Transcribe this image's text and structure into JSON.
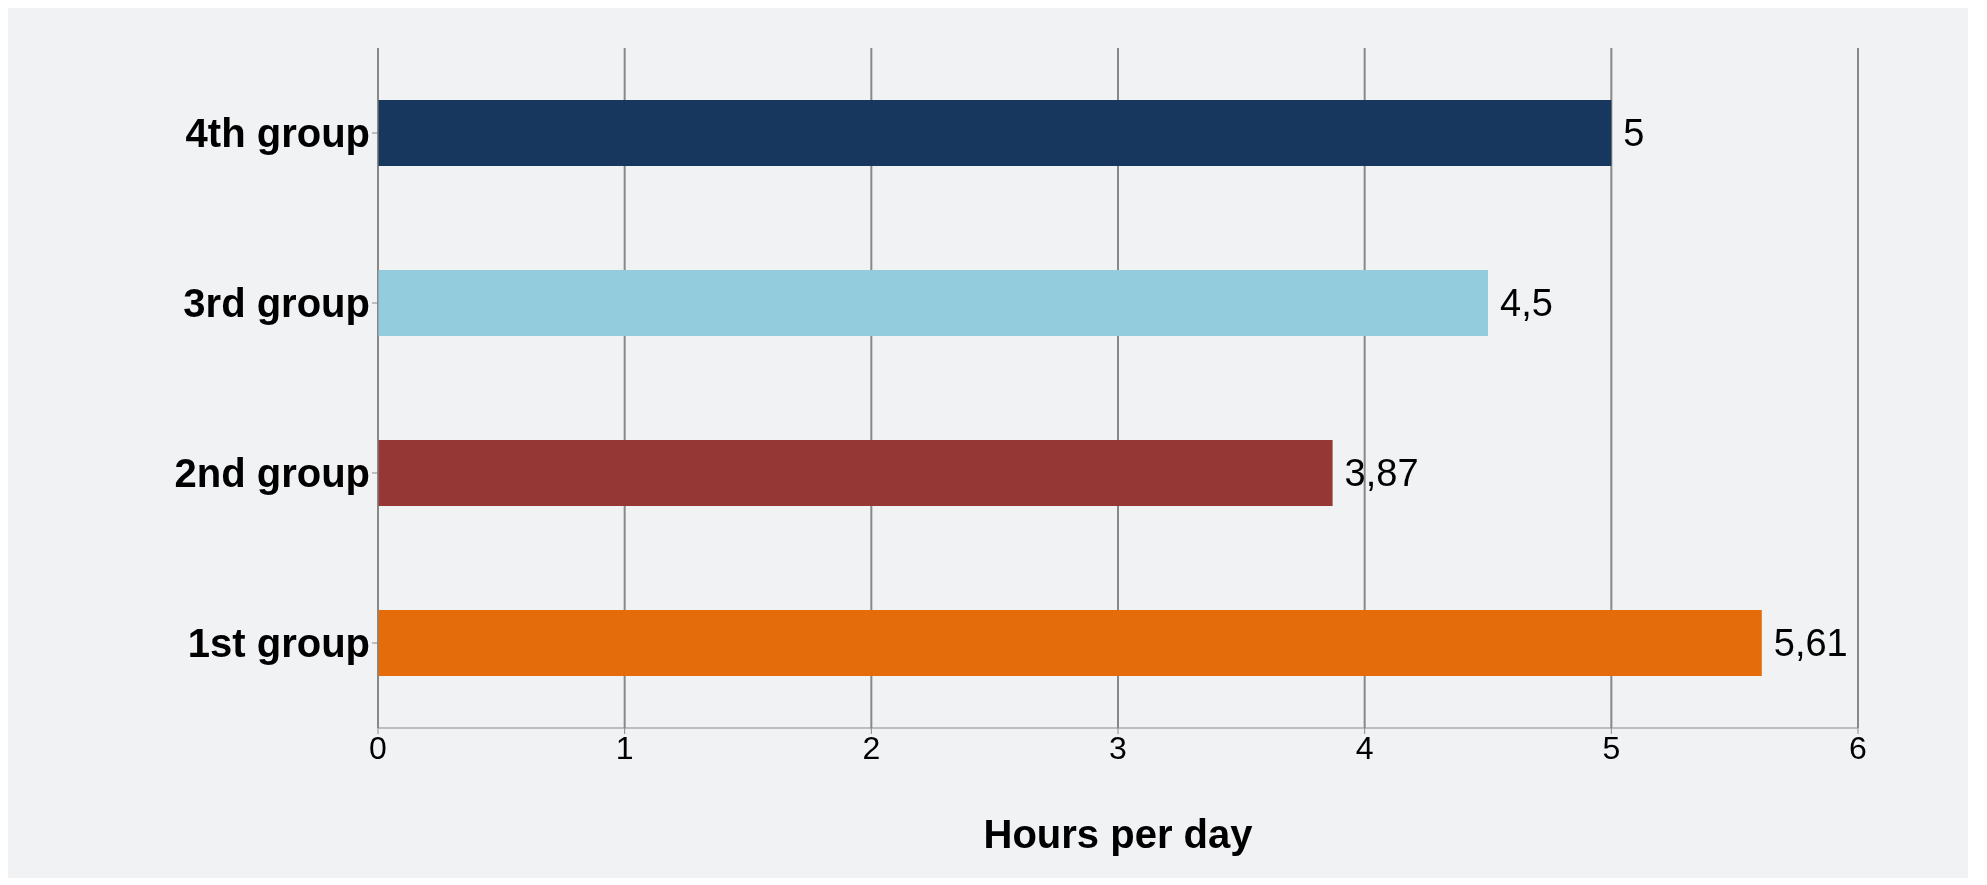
{
  "chart_data": {
    "type": "bar",
    "orientation": "horizontal",
    "xlabel": "Hours per day",
    "categories": [
      "4th group",
      "3rd group",
      "2nd group",
      "1st  group"
    ],
    "values": [
      5,
      4.5,
      3.87,
      5.61
    ],
    "colors": [
      "#17375e",
      "#93cddd",
      "#953735",
      "#e46c0a"
    ],
    "value_labels": [
      "5",
      "4,5",
      "3,87",
      "5,61"
    ],
    "xlim": [
      0,
      6
    ],
    "xticks": [
      0,
      1,
      2,
      3,
      4,
      5,
      6
    ],
    "grid": "x"
  }
}
